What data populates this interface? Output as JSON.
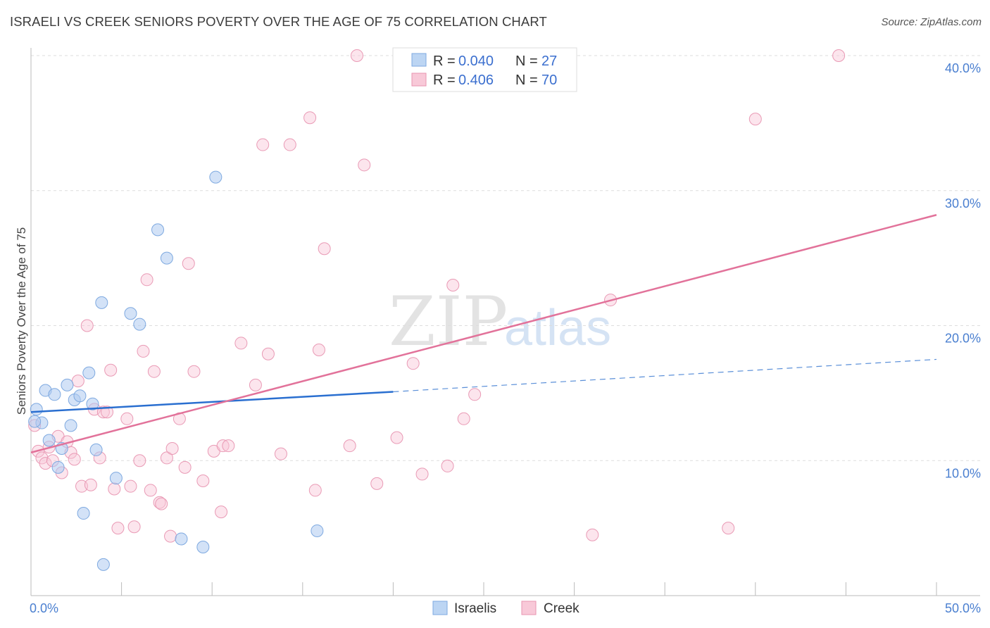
{
  "title": "ISRAELI VS CREEK SENIORS POVERTY OVER THE AGE OF 75 CORRELATION CHART",
  "source": "Source: ZipAtlas.com",
  "watermark": {
    "zip": "ZIP",
    "atlas": "atlas"
  },
  "legend": {
    "r_label": "R =",
    "n_label": "N =",
    "rows": [
      {
        "r": "0.040",
        "n": "27",
        "color": "#6ea3e3"
      },
      {
        "r": "0.406",
        "n": "70",
        "color": "#e88aa8"
      }
    ]
  },
  "bottom_legend": [
    "Israelis",
    "Creek"
  ],
  "chart_data": {
    "type": "scatter",
    "title": "ISRAELI VS CREEK SENIORS POVERTY OVER THE AGE OF 75 CORRELATION CHART",
    "xlabel": "",
    "ylabel": "Seniors Poverty Over the Age of 75",
    "xlim": [
      0,
      50
    ],
    "ylim": [
      0,
      40
    ],
    "x_tick_labels": [
      "0.0%",
      "50.0%"
    ],
    "y_ticks": [
      10,
      20,
      30,
      40
    ],
    "y_tick_labels": [
      "10.0%",
      "20.0%",
      "30.0%",
      "40.0%"
    ],
    "grid": "horizontal dashed",
    "legend_position": "top-center",
    "series": [
      {
        "name": "Israelis",
        "color": "#6ea3e3",
        "trend": {
          "x0": 0,
          "y0": 13.6,
          "x1": 20,
          "y1": 15.1,
          "dashed_to": {
            "x": 50,
            "y": 17.5
          }
        },
        "points": [
          [
            0.3,
            13.8
          ],
          [
            0.6,
            12.8
          ],
          [
            0.8,
            15.2
          ],
          [
            1.0,
            11.5
          ],
          [
            1.3,
            14.9
          ],
          [
            1.5,
            9.5
          ],
          [
            1.7,
            10.9
          ],
          [
            2.0,
            15.6
          ],
          [
            2.2,
            12.6
          ],
          [
            2.4,
            14.5
          ],
          [
            2.7,
            14.8
          ],
          [
            2.9,
            6.1
          ],
          [
            3.2,
            16.5
          ],
          [
            3.4,
            14.2
          ],
          [
            3.6,
            10.8
          ],
          [
            3.9,
            21.7
          ],
          [
            4.0,
            2.3
          ],
          [
            4.7,
            8.7
          ],
          [
            5.5,
            20.9
          ],
          [
            6.0,
            20.1
          ],
          [
            7.0,
            27.1
          ],
          [
            7.5,
            25.0
          ],
          [
            8.3,
            4.2
          ],
          [
            9.5,
            3.6
          ],
          [
            10.2,
            31.0
          ],
          [
            15.8,
            4.8
          ],
          [
            0.2,
            12.9
          ]
        ]
      },
      {
        "name": "Creek",
        "color": "#e88aa8",
        "trend": {
          "x0": 0,
          "y0": 10.6,
          "x1": 50,
          "y1": 28.2
        },
        "points": [
          [
            0.4,
            10.7
          ],
          [
            0.6,
            10.2
          ],
          [
            0.8,
            9.8
          ],
          [
            1.0,
            11.0
          ],
          [
            1.2,
            10.0
          ],
          [
            1.5,
            11.8
          ],
          [
            1.7,
            9.1
          ],
          [
            2.0,
            11.4
          ],
          [
            2.2,
            10.6
          ],
          [
            2.4,
            10.1
          ],
          [
            2.6,
            15.9
          ],
          [
            2.8,
            8.1
          ],
          [
            3.1,
            20.0
          ],
          [
            3.3,
            8.2
          ],
          [
            3.5,
            13.8
          ],
          [
            3.8,
            10.2
          ],
          [
            4.0,
            13.6
          ],
          [
            4.2,
            13.6
          ],
          [
            4.4,
            16.7
          ],
          [
            4.6,
            7.9
          ],
          [
            4.8,
            5.0
          ],
          [
            5.3,
            13.1
          ],
          [
            5.5,
            8.1
          ],
          [
            5.7,
            5.1
          ],
          [
            6.0,
            10.0
          ],
          [
            6.2,
            18.1
          ],
          [
            6.4,
            23.4
          ],
          [
            6.6,
            7.8
          ],
          [
            6.8,
            16.6
          ],
          [
            7.1,
            6.9
          ],
          [
            7.2,
            6.8
          ],
          [
            7.5,
            10.2
          ],
          [
            7.7,
            4.4
          ],
          [
            7.8,
            10.9
          ],
          [
            8.2,
            13.1
          ],
          [
            8.5,
            9.5
          ],
          [
            8.7,
            24.6
          ],
          [
            9.0,
            16.6
          ],
          [
            9.5,
            8.5
          ],
          [
            10.1,
            10.7
          ],
          [
            10.5,
            6.2
          ],
          [
            10.6,
            11.1
          ],
          [
            10.9,
            11.1
          ],
          [
            11.6,
            18.7
          ],
          [
            12.4,
            15.6
          ],
          [
            12.8,
            33.4
          ],
          [
            13.1,
            17.9
          ],
          [
            14.3,
            33.4
          ],
          [
            13.8,
            10.5
          ],
          [
            15.4,
            35.4
          ],
          [
            15.7,
            7.8
          ],
          [
            15.9,
            18.2
          ],
          [
            16.2,
            25.7
          ],
          [
            17.6,
            11.1
          ],
          [
            18.0,
            40.0
          ],
          [
            18.4,
            31.9
          ],
          [
            19.1,
            8.3
          ],
          [
            20.2,
            11.7
          ],
          [
            21.1,
            17.2
          ],
          [
            21.6,
            9.0
          ],
          [
            23.0,
            9.6
          ],
          [
            23.3,
            23.0
          ],
          [
            23.9,
            13.1
          ],
          [
            24.5,
            14.9
          ],
          [
            31.0,
            4.5
          ],
          [
            32.0,
            21.9
          ],
          [
            38.5,
            5.0
          ],
          [
            40.0,
            35.3
          ],
          [
            44.6,
            40.0
          ],
          [
            0.2,
            12.6
          ]
        ]
      }
    ]
  }
}
